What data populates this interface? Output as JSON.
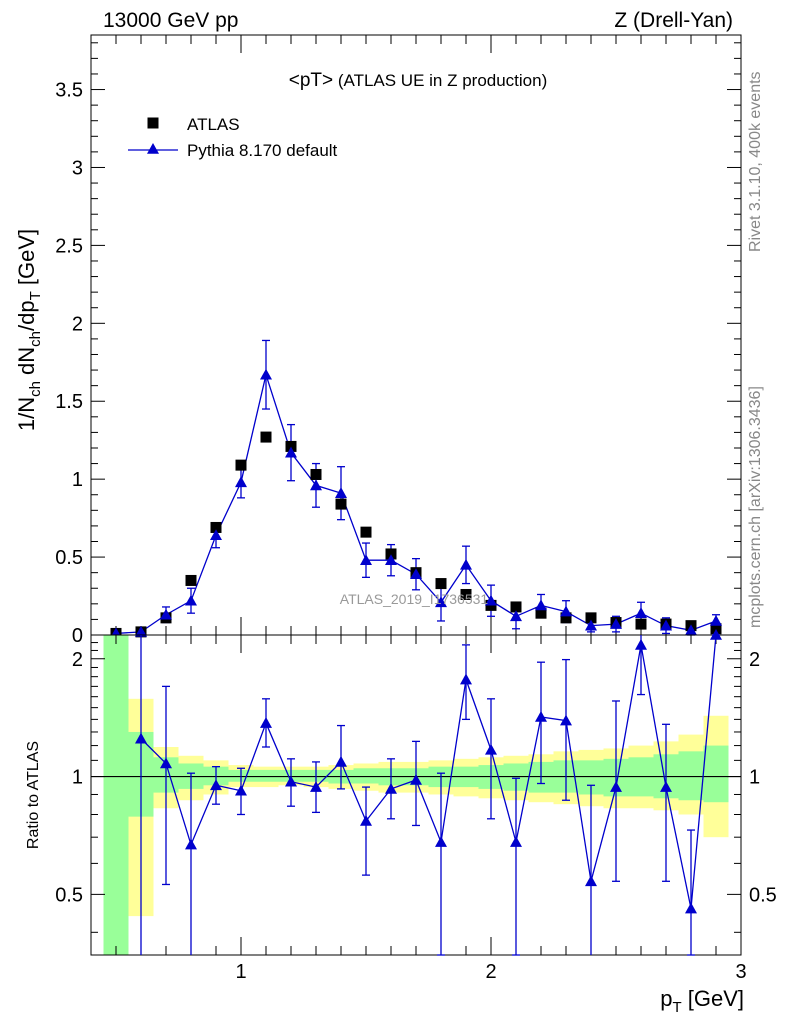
{
  "header": {
    "left": "13000 GeV pp",
    "right": "Z (Drell-Yan)"
  },
  "side": {
    "version": "Rivet 3.1.10,  400k events",
    "source": "mcplots.cern.ch [arXiv:1306.3436]"
  },
  "watermark": "ATLAS_2019_I1736531",
  "chart_data": [
    {
      "type": "scatter",
      "panel": "main",
      "title": "<pT>",
      "subtitle": "(ATLAS UE in Z production)",
      "xlabel": "p_T [GeV]",
      "ylabel": "1/N_ch dN_ch/dp_T [GeV]",
      "xlim": [
        0.4,
        3.0
      ],
      "ylim": [
        0,
        3.85
      ],
      "xscale": "linear",
      "yticks": [
        "0",
        "0.5",
        "1",
        "1.5",
        "2",
        "2.5",
        "3",
        "3.5"
      ],
      "legend_position": "top-left",
      "series": [
        {
          "name": "ATLAS",
          "color": "#000000",
          "marker": "square",
          "x": [
            0.5,
            0.6,
            0.7,
            0.8,
            0.9,
            1.0,
            1.1,
            1.2,
            1.3,
            1.4,
            1.5,
            1.6,
            1.7,
            1.8,
            1.9,
            2.0,
            2.1,
            2.2,
            2.3,
            2.4,
            2.5,
            2.6,
            2.7,
            2.8,
            2.9
          ],
          "y": [
            0.01,
            0.02,
            0.11,
            0.35,
            0.69,
            1.09,
            1.27,
            1.21,
            1.03,
            0.84,
            0.66,
            0.52,
            0.4,
            0.33,
            0.26,
            0.19,
            0.18,
            0.14,
            0.11,
            0.11,
            0.08,
            0.07,
            0.07,
            0.06,
            0.04
          ]
        },
        {
          "name": "Pythia 8.170 default",
          "color": "#0000cc",
          "marker": "triangle",
          "x": [
            0.5,
            0.6,
            0.7,
            0.8,
            0.9,
            1.0,
            1.1,
            1.2,
            1.3,
            1.4,
            1.5,
            1.6,
            1.7,
            1.8,
            1.9,
            2.0,
            2.1,
            2.2,
            2.3,
            2.4,
            2.5,
            2.6,
            2.7,
            2.8,
            2.9
          ],
          "y": [
            0.01,
            0.02,
            0.13,
            0.22,
            0.64,
            0.98,
            1.67,
            1.17,
            0.96,
            0.91,
            0.48,
            0.48,
            0.39,
            0.21,
            0.45,
            0.22,
            0.12,
            0.19,
            0.15,
            0.06,
            0.07,
            0.14,
            0.06,
            0.03,
            0.09
          ],
          "err": [
            0.01,
            0.02,
            0.05,
            0.08,
            0.08,
            0.1,
            0.22,
            0.18,
            0.14,
            0.17,
            0.11,
            0.1,
            0.1,
            0.12,
            0.12,
            0.1,
            0.08,
            0.07,
            0.07,
            0.04,
            0.05,
            0.07,
            0.05,
            0.03,
            0.04
          ]
        }
      ]
    },
    {
      "type": "scatter",
      "panel": "ratio",
      "ylabel": "Ratio to ATLAS",
      "xlabel": "p_T [GeV]",
      "xlim": [
        0.4,
        3.0
      ],
      "ylim": [
        0.35,
        2.3
      ],
      "yscale": "log",
      "xticks": [
        "1",
        "2",
        "3"
      ],
      "yticks": [
        "0.5",
        "1",
        "2"
      ],
      "reference_line": 1,
      "bands": {
        "edges": [
          0.45,
          0.55,
          0.65,
          0.75,
          0.85,
          0.95,
          1.05,
          1.15,
          1.25,
          1.35,
          1.45,
          1.55,
          1.65,
          1.75,
          1.85,
          1.95,
          2.05,
          2.15,
          2.25,
          2.35,
          2.45,
          2.55,
          2.65,
          2.75,
          2.85,
          2.95
        ],
        "inner_color": "#99ff99",
        "outer_color": "#ffff99",
        "inner_lo": [
          0.35,
          0.79,
          0.91,
          0.93,
          0.95,
          0.97,
          0.97,
          0.97,
          0.97,
          0.96,
          0.96,
          0.95,
          0.95,
          0.94,
          0.94,
          0.93,
          0.92,
          0.91,
          0.91,
          0.9,
          0.89,
          0.89,
          0.88,
          0.87,
          0.86
        ],
        "inner_hi": [
          2.3,
          1.3,
          1.12,
          1.08,
          1.06,
          1.04,
          1.04,
          1.04,
          1.04,
          1.04,
          1.05,
          1.05,
          1.05,
          1.06,
          1.06,
          1.07,
          1.08,
          1.09,
          1.1,
          1.1,
          1.11,
          1.12,
          1.14,
          1.16,
          1.2
        ],
        "outer_lo": [
          0.35,
          0.44,
          0.83,
          0.87,
          0.9,
          0.94,
          0.94,
          0.95,
          0.94,
          0.93,
          0.92,
          0.91,
          0.91,
          0.9,
          0.89,
          0.88,
          0.87,
          0.86,
          0.85,
          0.84,
          0.83,
          0.83,
          0.82,
          0.8,
          0.7
        ],
        "outer_hi": [
          2.3,
          1.58,
          1.19,
          1.13,
          1.1,
          1.07,
          1.06,
          1.06,
          1.06,
          1.07,
          1.08,
          1.09,
          1.09,
          1.1,
          1.11,
          1.12,
          1.13,
          1.14,
          1.16,
          1.17,
          1.18,
          1.2,
          1.23,
          1.28,
          1.43
        ]
      },
      "series": [
        {
          "name": "Pythia 8.170 default",
          "color": "#0000cc",
          "marker": "triangle",
          "x": [
            0.6,
            0.7,
            0.8,
            0.9,
            1.0,
            1.1,
            1.2,
            1.3,
            1.4,
            1.5,
            1.6,
            1.7,
            1.8,
            1.9,
            2.0,
            2.1,
            2.2,
            2.3,
            2.4,
            2.5,
            2.6,
            2.7,
            2.8,
            2.9
          ],
          "y": [
            1.25,
            1.08,
            0.67,
            0.95,
            0.92,
            1.37,
            0.97,
            0.94,
            1.09,
            0.77,
            0.93,
            0.98,
            0.68,
            1.77,
            1.17,
            0.68,
            1.42,
            1.39,
            0.54,
            0.94,
            2.17,
            0.94,
            0.46,
            2.3
          ],
          "err_lo": [
            0.9,
            0.55,
            0.33,
            0.1,
            0.12,
            0.18,
            0.13,
            0.13,
            0.16,
            0.21,
            0.15,
            0.23,
            0.33,
            0.37,
            0.39,
            0.33,
            0.46,
            0.52,
            0.2,
            0.4,
            0.55,
            0.4,
            0.11,
            0.0
          ],
          "err_hi": [
            1.1,
            0.62,
            0.35,
            0.11,
            0.13,
            0.21,
            0.14,
            0.15,
            0.26,
            0.17,
            0.18,
            0.25,
            0.34,
            0.4,
            0.41,
            0.31,
            0.54,
            0.6,
            0.41,
            0.62,
            0.45,
            0.42,
            0.27,
            0.0
          ]
        }
      ]
    }
  ]
}
